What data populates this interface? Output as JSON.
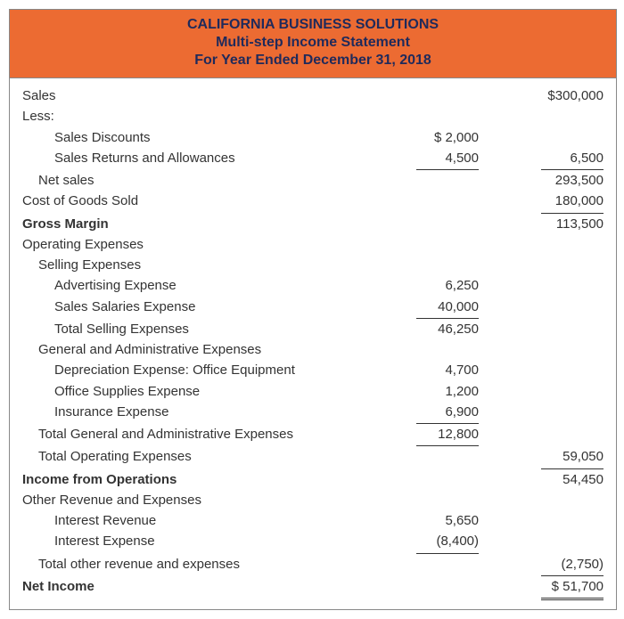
{
  "colors": {
    "header_bg": "#ec6b32",
    "header_text": "#1f2a5b",
    "border": "#888888",
    "text": "#333333"
  },
  "header": {
    "company": "CALIFORNIA BUSINESS SOLUTIONS",
    "title": "Multi-step Income Statement",
    "period": "For Year Ended December 31, 2018"
  },
  "lines": {
    "sales_label": "Sales",
    "sales_amount": "$300,000",
    "less_label": "Less:",
    "discounts_label": "Sales Discounts",
    "discounts_amount": "$  2,000",
    "returns_label": "Sales Returns and Allowances",
    "returns_amount": "4,500",
    "less_total": "6,500",
    "net_sales_label": "Net sales",
    "net_sales_amount": "293,500",
    "cogs_label": "Cost of Goods Sold",
    "cogs_amount": "180,000",
    "gross_margin_label": "Gross Margin",
    "gross_margin_amount": "113,500",
    "opex_label": "Operating Expenses",
    "selling_label": "Selling Expenses",
    "adv_label": "Advertising Expense",
    "adv_amount": "6,250",
    "sal_label": "Sales Salaries Expense",
    "sal_amount": "40,000",
    "selling_total_label": "Total Selling Expenses",
    "selling_total_amount": "46,250",
    "ga_label": "General and Administrative Expenses",
    "dep_label": "Depreciation Expense: Office Equipment",
    "dep_amount": "4,700",
    "supplies_label": "Office Supplies Expense",
    "supplies_amount": "1,200",
    "ins_label": "Insurance Expense",
    "ins_amount": "6,900",
    "ga_total_label": "Total General and Administrative Expenses",
    "ga_total_amount": "12,800",
    "opex_total_label": "Total Operating Expenses",
    "opex_total_amount": "59,050",
    "op_income_label": "Income from Operations",
    "op_income_amount": "54,450",
    "other_label": "Other Revenue and Expenses",
    "int_rev_label": "Interest Revenue",
    "int_rev_amount": "5,650",
    "int_exp_label": "Interest Expense",
    "int_exp_amount": "(8,400)",
    "other_total_label": "Total other revenue and expenses",
    "other_total_amount": "(2,750)",
    "net_income_label": "Net Income",
    "net_income_amount": "$  51,700"
  }
}
